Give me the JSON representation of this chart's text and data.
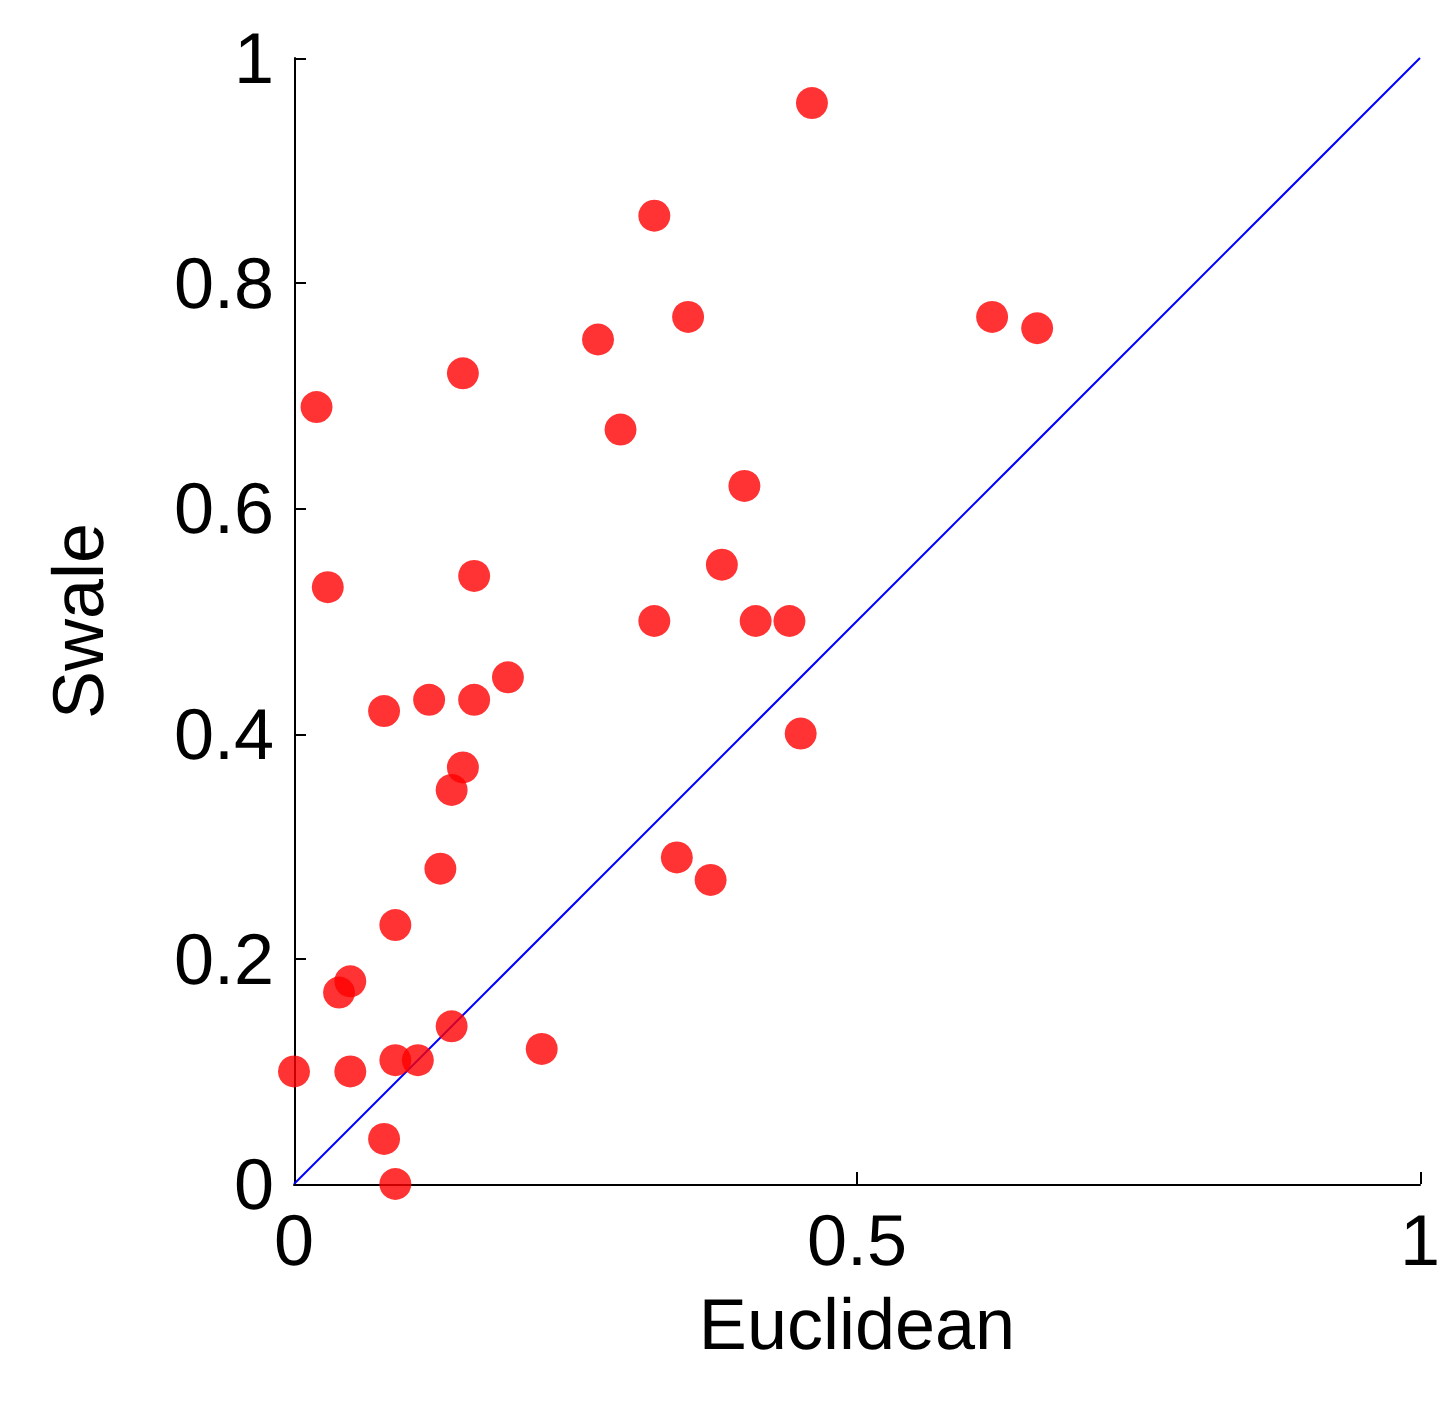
{
  "chart_data": {
    "type": "scatter",
    "xlabel": "Euclidean",
    "ylabel": "Swale",
    "xlim": [
      0,
      1
    ],
    "ylim": [
      0,
      1
    ],
    "xticks": [
      0,
      0.5,
      1
    ],
    "yticks": [
      0,
      0.2,
      0.4,
      0.6,
      0.8,
      1
    ],
    "grid": false,
    "marker": "circle",
    "series": [
      {
        "color": "#ff0000",
        "x": [
          0.46,
          0.32,
          0.35,
          0.27,
          0.15,
          0.02,
          0.29,
          0.62,
          0.66,
          0.4,
          0.03,
          0.16,
          0.38,
          0.32,
          0.44,
          0.41,
          0.19,
          0.12,
          0.16,
          0.08,
          0.45,
          0.15,
          0.14,
          0.13,
          0.34,
          0.37,
          0.09,
          0.05,
          0.04,
          0.22,
          0.14,
          0.0,
          0.05,
          0.09,
          0.11,
          0.08,
          0.09
        ],
        "values": [
          0.96,
          0.86,
          0.77,
          0.75,
          0.72,
          0.69,
          0.67,
          0.77,
          0.76,
          0.62,
          0.53,
          0.54,
          0.55,
          0.5,
          0.5,
          0.5,
          0.45,
          0.43,
          0.43,
          0.42,
          0.4,
          0.37,
          0.35,
          0.28,
          0.29,
          0.27,
          0.23,
          0.18,
          0.17,
          0.12,
          0.14,
          0.1,
          0.1,
          0.11,
          0.11,
          0.04,
          0.0
        ]
      },
      {
        "type": "line",
        "color": "#0000ff",
        "marker": "none",
        "x": [
          0,
          1
        ],
        "values": [
          0,
          1
        ]
      }
    ]
  }
}
